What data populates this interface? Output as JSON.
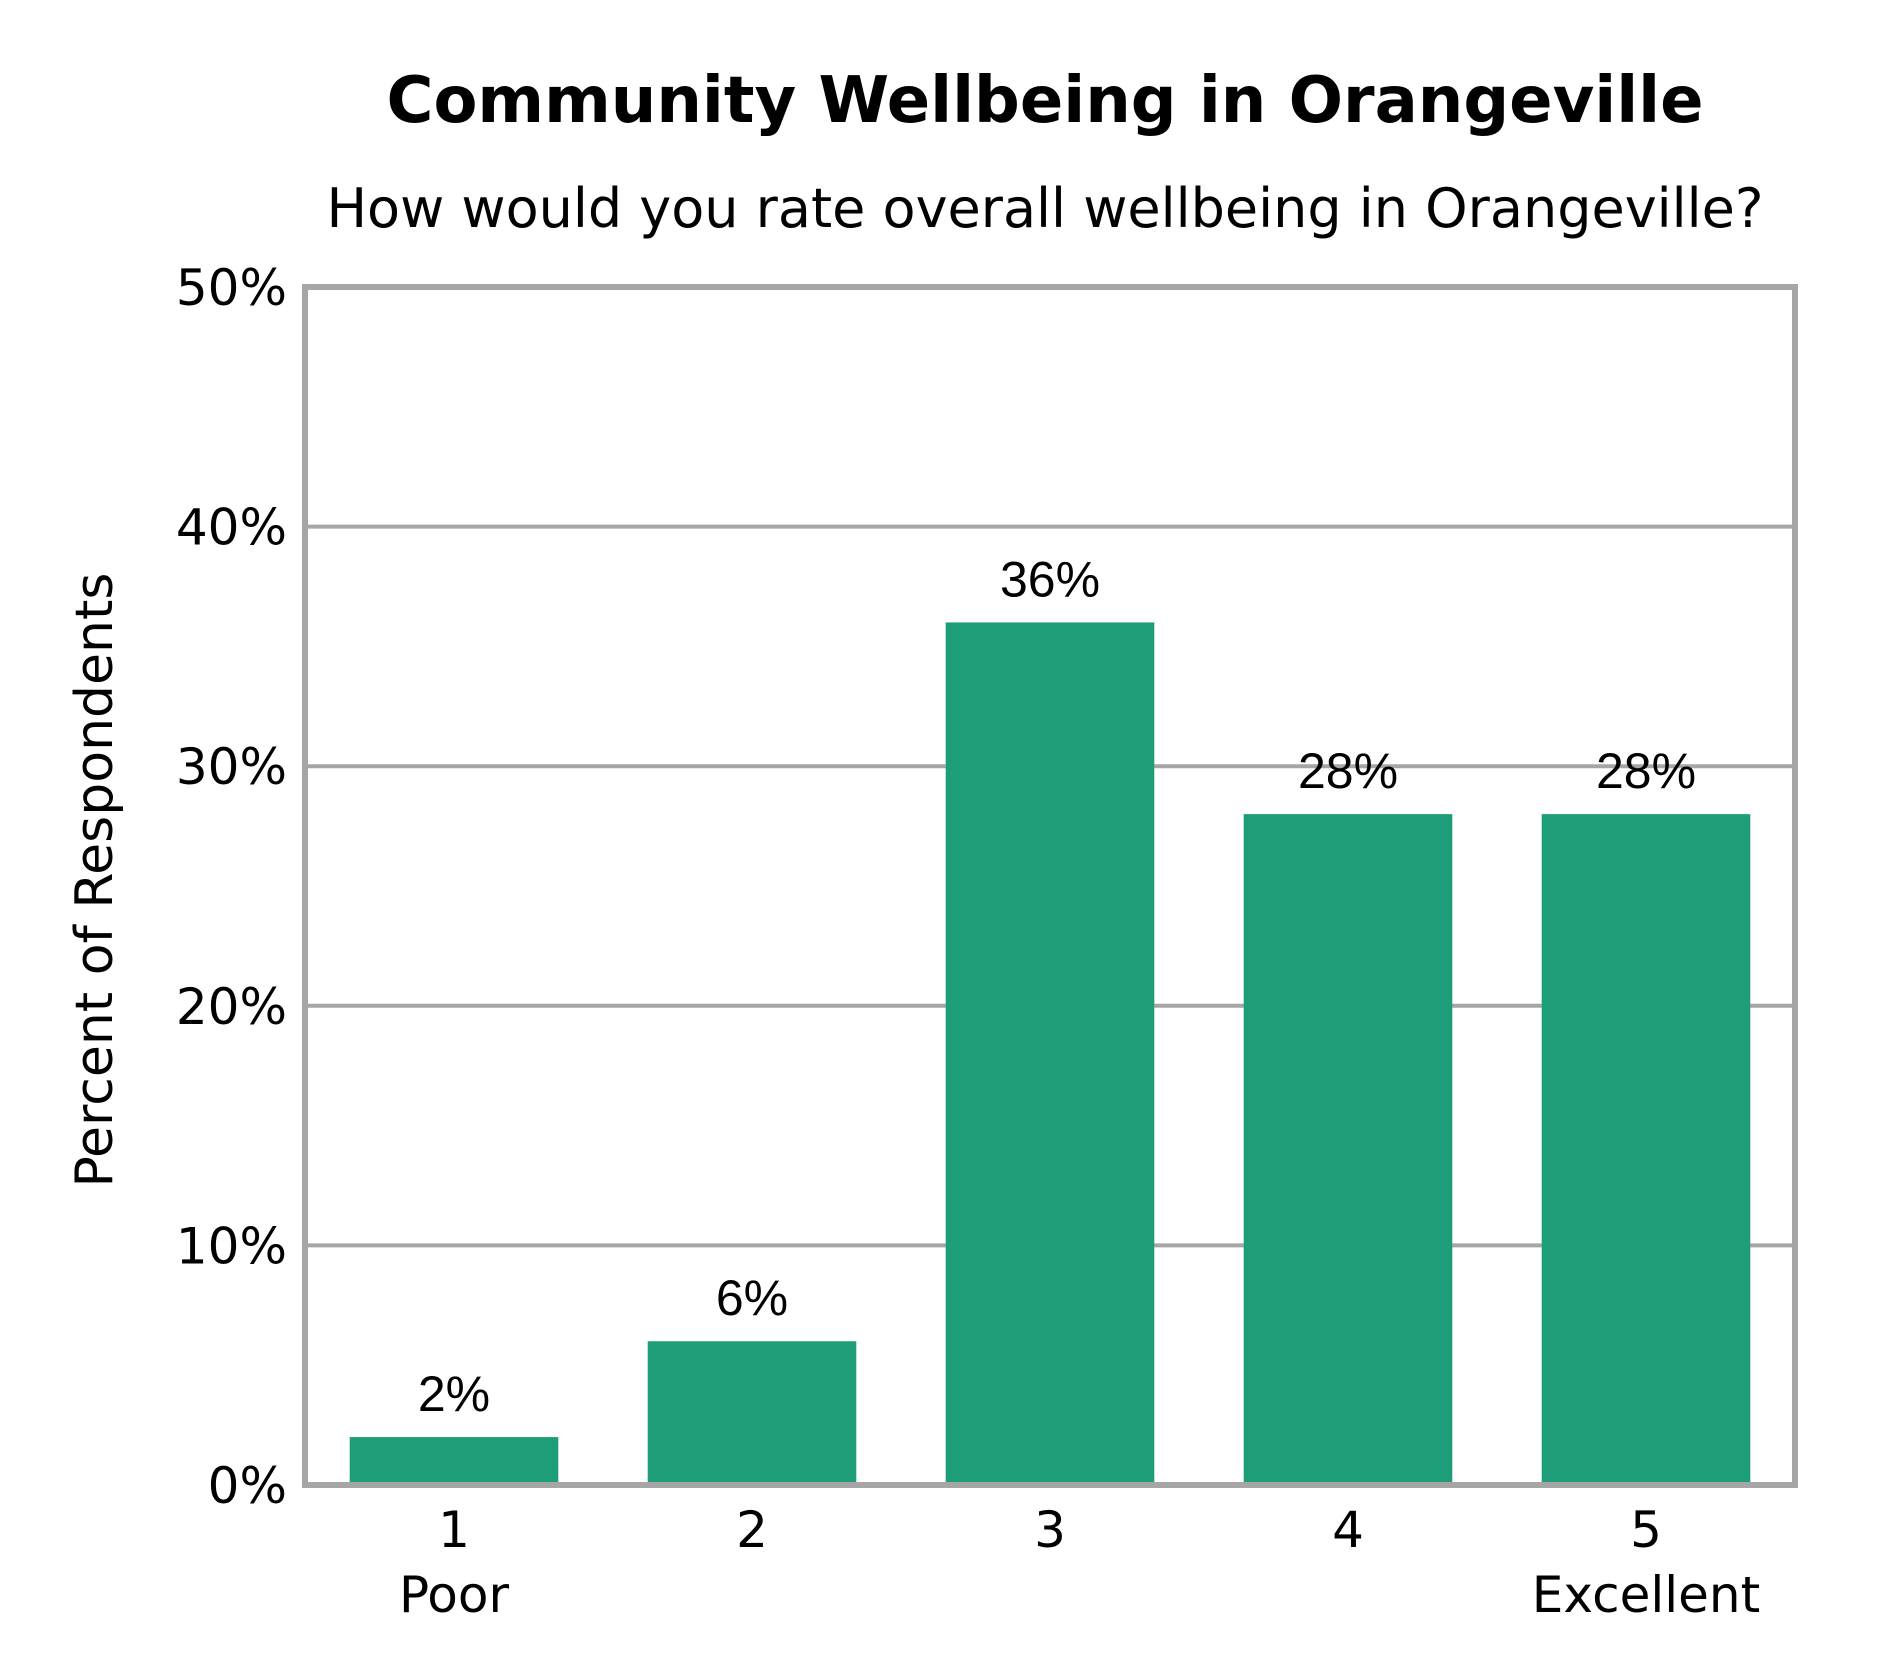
{
  "chart_data": {
    "type": "bar",
    "title": "Community Wellbeing in Orangeville",
    "subtitle": "How would you rate overall wellbeing in Orangeville?",
    "xlabel": "",
    "ylabel": "Percent of Respondents",
    "categories": [
      "1",
      "2",
      "3",
      "4",
      "5"
    ],
    "category_sublabels": [
      "Poor",
      "",
      "",
      "",
      "Excellent"
    ],
    "values": [
      2,
      6,
      36,
      28,
      28
    ],
    "data_labels": [
      "2%",
      "6%",
      "36%",
      "28%",
      "28%"
    ],
    "ylim": [
      0,
      50
    ],
    "yticks": [
      0,
      10,
      20,
      30,
      40,
      50
    ],
    "ytick_labels": [
      "0%",
      "10%",
      "20%",
      "30%",
      "40%",
      "50%"
    ],
    "grid": true,
    "bar_color": "#1d9e78",
    "grid_color": "#a6a6a6"
  }
}
